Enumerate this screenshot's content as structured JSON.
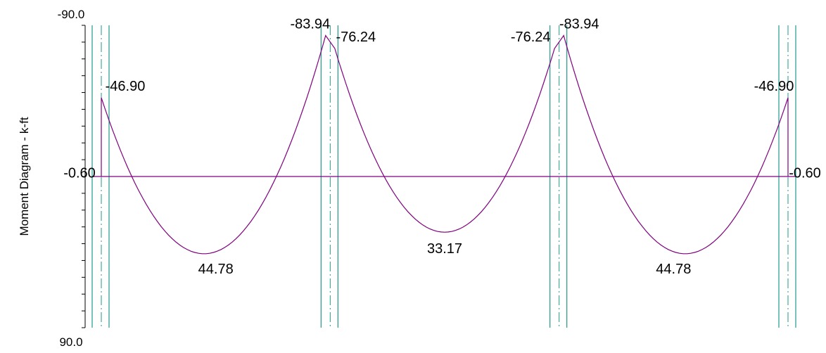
{
  "chart_data": {
    "type": "line",
    "title": "",
    "ylabel": "Moment Diagram - k-ft",
    "xlabel": "",
    "ylim": [
      -90.0,
      90.0
    ],
    "y_inverted": true,
    "y_ticks": [
      "-90.0",
      "90.0"
    ],
    "grid": false,
    "colors": {
      "curve": "#800080",
      "supports": "#1f9a8a",
      "axis": "#000000"
    },
    "supports_x": [
      0,
      20,
      40,
      60
    ],
    "series": [
      {
        "x": [
          0,
          0,
          2.5,
          10,
          17.5,
          19.6,
          20.4,
          22.5,
          30,
          37.5,
          39.6,
          40.4,
          42.5,
          50,
          57.5,
          60,
          60
        ],
        "values": [
          0,
          -46.9,
          0,
          44.78,
          0,
          -83.94,
          -76.24,
          0,
          33.17,
          0,
          -76.24,
          -83.94,
          0,
          44.78,
          0,
          -46.9,
          0
        ]
      }
    ],
    "labels": [
      {
        "text": "-0.60",
        "x": 0,
        "y": -0.6
      },
      {
        "text": "-46.90",
        "x": 0,
        "y": -46.9
      },
      {
        "text": "-83.94",
        "x": 19.6,
        "y": -83.94
      },
      {
        "text": "-76.24",
        "x": 20.4,
        "y": -76.24
      },
      {
        "text": "44.78",
        "x": 10,
        "y": 44.78
      },
      {
        "text": "33.17",
        "x": 30,
        "y": 33.17
      },
      {
        "text": "-76.24",
        "x": 39.6,
        "y": -76.24
      },
      {
        "text": "-83.94",
        "x": 40.4,
        "y": -83.94
      },
      {
        "text": "44.78",
        "x": 50,
        "y": 44.78
      },
      {
        "text": "-46.90",
        "x": 60,
        "y": -46.9
      },
      {
        "text": "-0.60",
        "x": 60,
        "y": -0.6
      }
    ]
  }
}
